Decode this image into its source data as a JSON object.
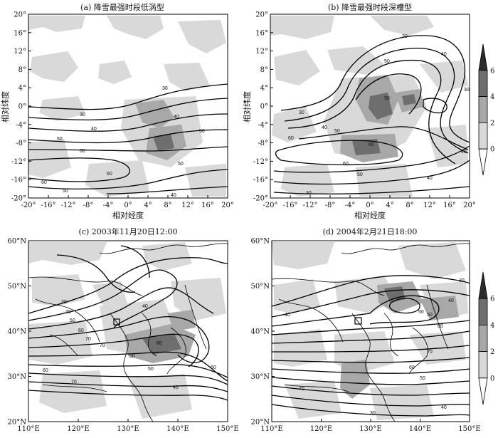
{
  "panels": [
    {
      "id": "a",
      "title": "(a) 降雪最强时段低涡型",
      "xticks": [
        "-20°",
        "-16°",
        "-12°",
        "-8°",
        "-4°",
        "0°",
        "4°",
        "8°",
        "12°",
        "16°",
        "20°"
      ],
      "yticks": [
        "20°",
        "16°",
        "12°",
        "8°",
        "4°",
        "0°",
        "-4°",
        "-8°",
        "-12°",
        "-16°",
        "-20°"
      ],
      "xlabel": "相对经度",
      "ylabel": "相对纬度",
      "contour_labels": [
        "30",
        "30",
        "40",
        "40",
        "50",
        "50",
        "60",
        "60",
        "60",
        "50",
        "50",
        "40"
      ]
    },
    {
      "id": "b",
      "title": "(b) 降雪最强时段深槽型",
      "xticks": [
        "-20°",
        "-16°",
        "-12°",
        "-8°",
        "-4°",
        "0°",
        "4°",
        "8°",
        "12°",
        "16°",
        "20°"
      ],
      "yticks": [
        "20°",
        "16°",
        "12°",
        "8°",
        "4°",
        "0°",
        "-4°",
        "-8°",
        "-12°",
        "-16°",
        "-20°"
      ],
      "xlabel": "相对经度",
      "ylabel": "相对纬度",
      "contour_labels": [
        "30",
        "40",
        "50",
        "50",
        "30",
        "40",
        "60",
        "60",
        "50",
        "40",
        "30",
        "50",
        "60",
        "40",
        "30"
      ]
    },
    {
      "id": "c",
      "title": "(c) 2003年11月20日12:00",
      "xticks": [
        "110°E",
        "120°E",
        "130°E",
        "140°E",
        "150°E"
      ],
      "yticks": [
        "60°N",
        "50°N",
        "40°N",
        "30°N",
        "20°N"
      ],
      "contour_labels": [
        "40",
        "50",
        "60",
        "70",
        "70",
        "60",
        "50",
        "40",
        "60",
        "70",
        "60",
        "50",
        "40",
        "30"
      ]
    },
    {
      "id": "d",
      "title": "(d) 2004年2月21日18:00",
      "xticks": [
        "110°E",
        "120°E",
        "130°E",
        "140°E",
        "150°E"
      ],
      "yticks": [
        "60°N",
        "50°N",
        "40°N",
        "30°N",
        "20°N"
      ],
      "contour_labels": [
        "30",
        "40",
        "50",
        "60",
        "70",
        "70",
        "60",
        "50",
        "40",
        "30",
        "50",
        "40"
      ]
    }
  ],
  "colorbar": {
    "ticks": [
      "6",
      "4",
      "2",
      "0"
    ],
    "colors": [
      "#2b2b2b",
      "#6e6e6e",
      "#a8a8a8",
      "#d9d9d9",
      "#ffffff"
    ]
  }
}
